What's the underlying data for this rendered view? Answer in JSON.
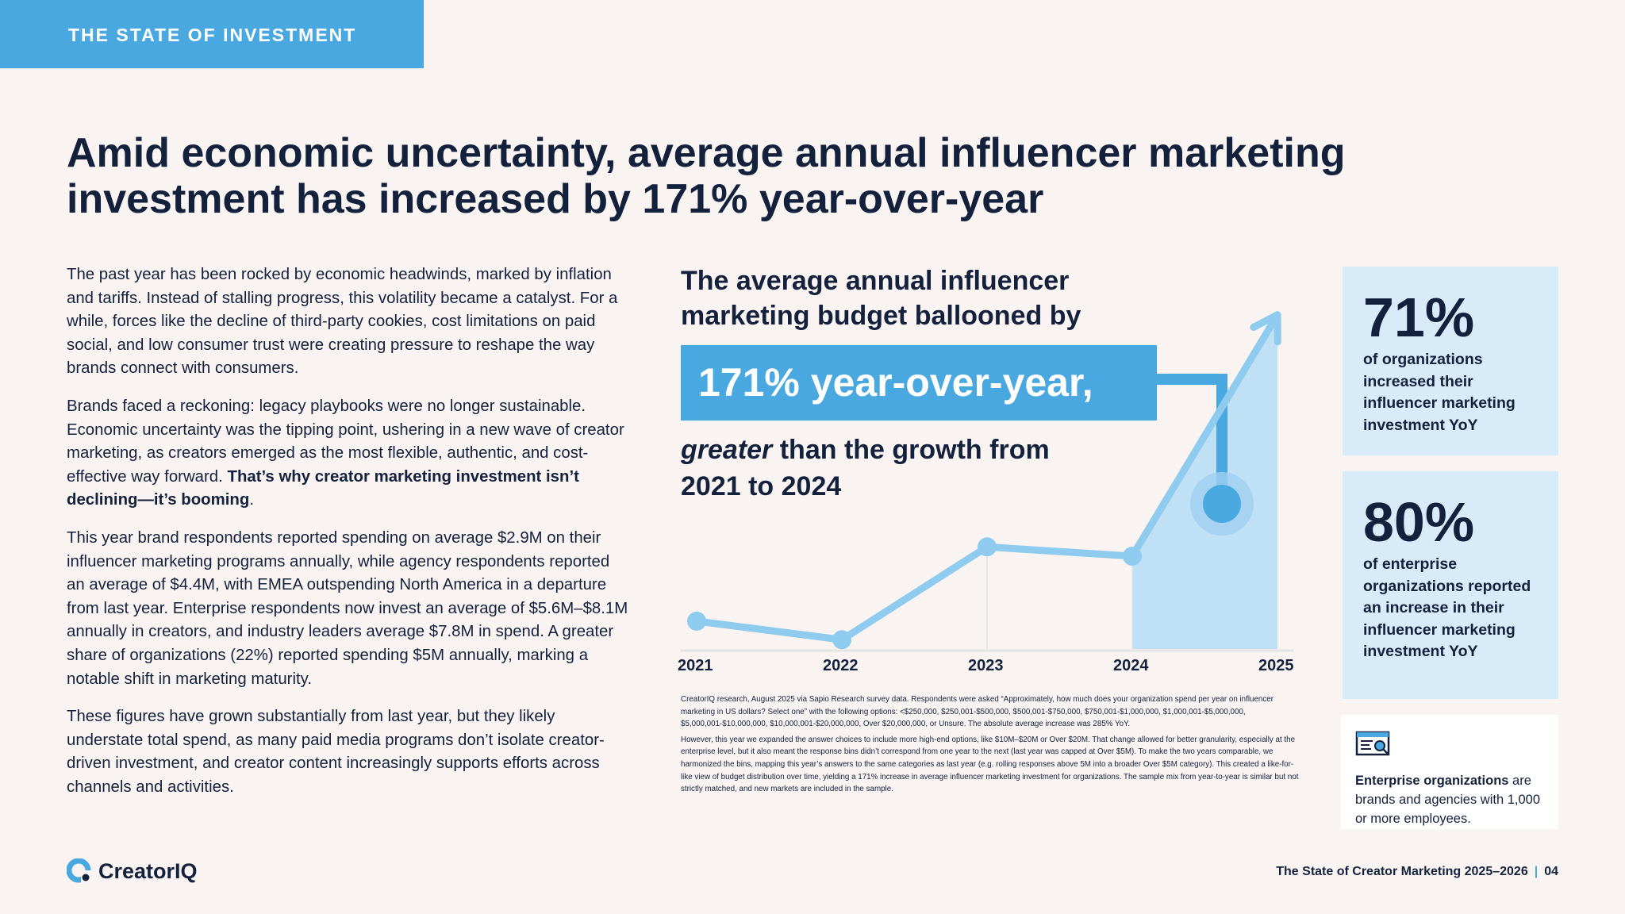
{
  "section_tab": "THE STATE OF INVESTMENT",
  "headline": "Amid economic uncertainty, average annual influencer marketing investment has increased by 171% year-over-year",
  "body": {
    "p1": "The past year has been rocked by economic headwinds, marked by inflation and tariffs. Instead of stalling progress, this volatility became a catalyst. For a while, forces like the decline of third-party cookies, cost limitations on paid social, and low consumer trust were creating pressure to reshape the way brands connect with consumers.",
    "p2_a": "Brands faced a reckoning: legacy playbooks were no longer sustainable. Economic uncertainty was the tipping point, ushering in a new wave of creator marketing, as creators emerged as the most flexible, authentic, and cost-effective way forward. ",
    "p2_b": "That’s why creator marketing investment isn’t declining—it’s booming",
    "p2_c": ".",
    "p3": "This year brand respondents reported spending on average $2.9M on their influencer marketing programs annually, while agency respondents reported an average of $4.4M, with EMEA outspending North America in a departure from last year. Enterprise respondents now invest an average of $5.6M–$8.1M annually in creators, and industry leaders average $7.8M in spend. A greater share of organizations (22%) reported spending $5M annually, marking a notable shift in marketing maturity.",
    "p4": "These figures have grown substantially from last year, but they likely understate total spend, as many paid media programs don’t isolate creator-driven investment, and creator content increasingly supports efforts across channels and activities."
  },
  "callout": {
    "title": "The average annual influencer marketing budget ballooned by",
    "highlight": "171% year-over-year,",
    "sub_em": "greater",
    "sub_rest": " than the growth from 2021 to 2024"
  },
  "chart_data": {
    "type": "line",
    "x": [
      "2021",
      "2022",
      "2023",
      "2024",
      "2025"
    ],
    "series": [
      {
        "values": [
          0.15,
          0.05,
          0.55,
          0.5,
          1.8
        ]
      }
    ],
    "ylim": [
      0,
      2
    ],
    "grid": false,
    "highlight_segment": [
      "2024",
      "2025"
    ],
    "accent_color": "#4aa8e0",
    "line_color": "#8ecbee",
    "fill_color": "#bfe0f5"
  },
  "footnote": {
    "p1": "CreatorIQ research, August 2025 via Sapio Research survey data. Respondents were asked “Approximately, how much does your organization spend per year on influencer marketing in US dollars? Select one” with the following options: <$250,000, $250,001-$500,000, $500,001-$750,000, $750,001-$1,000,000, $1,000,001-$5,000,000, $5,000,001-$10,000,000, $10,000,001-$20,000,000, Over $20,000,000, or Unsure. The absolute average increase was 285% YoY.",
    "p2": "However, this year we expanded the answer choices to include more high-end options, like $10M–$20M or Over $20M. That change allowed for better granularity, especially at the enterprise level, but it also meant the response bins didn’t correspond from one year to the next (last year was capped at Over $5M). To make the two years comparable, we harmonized the bins, mapping this year’s answers to the same categories as last year (e.g. rolling responses above 5M into a broader Over $5M category). This created a like-for-like view of budget distribution over time, yielding a 171% increase in average influencer marketing investment for organizations. The sample mix from year-to-year is similar but not strictly matched, and new markets are included in the sample."
  },
  "stats": [
    {
      "value": "71%",
      "label": "of organizations increased their influencer marketing investment YoY"
    },
    {
      "value": "80%",
      "label": "of enterprise organizations reported an increase in their influencer marketing investment YoY"
    }
  ],
  "note": {
    "icon": "search-document-icon",
    "bold": "Enterprise organizations",
    "rest": " are brands and agencies with 1,000 or more employees."
  },
  "logo_text": "CreatorIQ",
  "footer": {
    "title": "The State of Creator Marketing 2025–2026",
    "page": "04"
  }
}
